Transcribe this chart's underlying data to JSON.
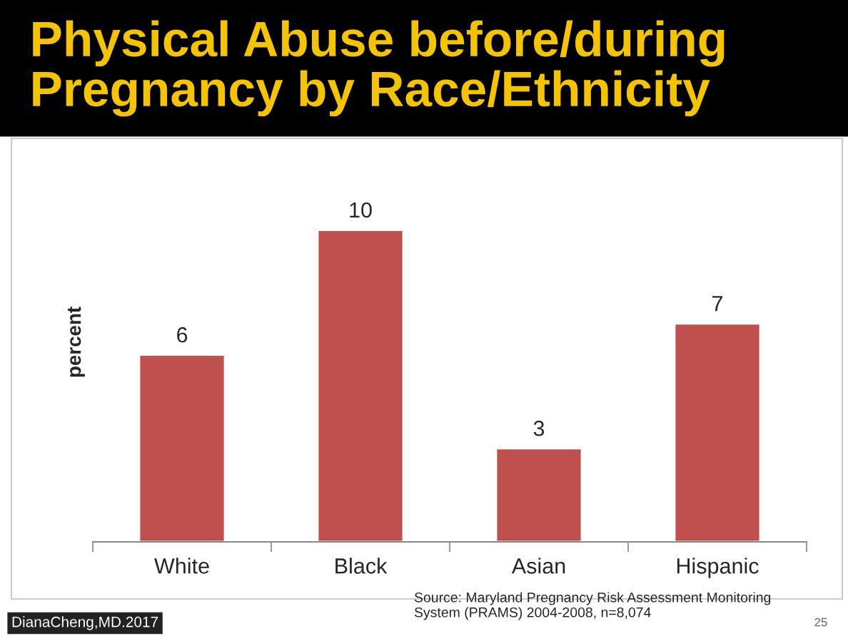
{
  "chart_data": {
    "type": "bar",
    "title": "Physical Abuse before/during\nPregnancy by Race/Ethnicity",
    "categories": [
      "White",
      "Black",
      "Asian",
      "Hispanic"
    ],
    "values": [
      6,
      10,
      3,
      7
    ],
    "color": "#c0504d",
    "ylabel": "percent",
    "data_labels": true,
    "grid": false,
    "legend": false,
    "tick_labels": "x",
    "annotations": [
      "Source: Maryland Pregnancy Risk Assessment Monitoring\nSystem (PRAMS) 2004-2008, n=8,074",
      "DianaCheng,MD.2017",
      "25"
    ]
  }
}
